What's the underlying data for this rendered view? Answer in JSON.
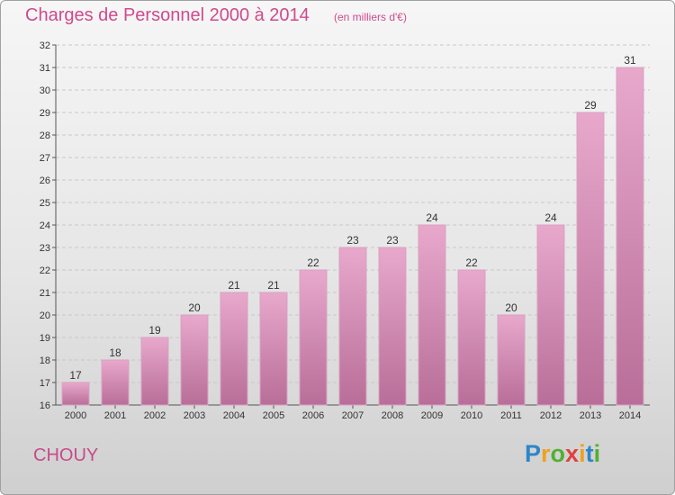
{
  "header": {
    "title": "Charges de Personnel 2000 à 2014",
    "subtitle": "(en milliers d'€)"
  },
  "footer": {
    "town": "CHOUY",
    "logo_letters": [
      "P",
      "r",
      "o",
      "x",
      "i",
      "t",
      "i"
    ],
    "logo_colors": [
      "#2e86c8",
      "#f0a020",
      "#52b030",
      "#e04040",
      "#f0a020",
      "#2e86c8",
      "#52b030"
    ]
  },
  "colors": {
    "bar_top": "#e8a8cc",
    "bar_bottom": "#b86e98",
    "accent": "#d04a8c"
  },
  "chart_data": {
    "type": "bar",
    "categories": [
      "2000",
      "2001",
      "2002",
      "2003",
      "2004",
      "2005",
      "2006",
      "2007",
      "2008",
      "2009",
      "2010",
      "2011",
      "2012",
      "2013",
      "2014"
    ],
    "values": [
      17,
      18,
      19,
      20,
      21,
      21,
      22,
      23,
      23,
      24,
      22,
      20,
      24,
      29,
      31
    ],
    "yticks": [
      "16",
      "17",
      "18",
      "19",
      "20",
      "21",
      "22",
      "23",
      "24",
      "25",
      "26",
      "27",
      "28",
      "29",
      "30",
      "31",
      "32"
    ],
    "ylim": [
      16,
      32
    ],
    "grid": true,
    "title": "Charges de Personnel 2000 à 2014",
    "xlabel": "",
    "ylabel": ""
  }
}
